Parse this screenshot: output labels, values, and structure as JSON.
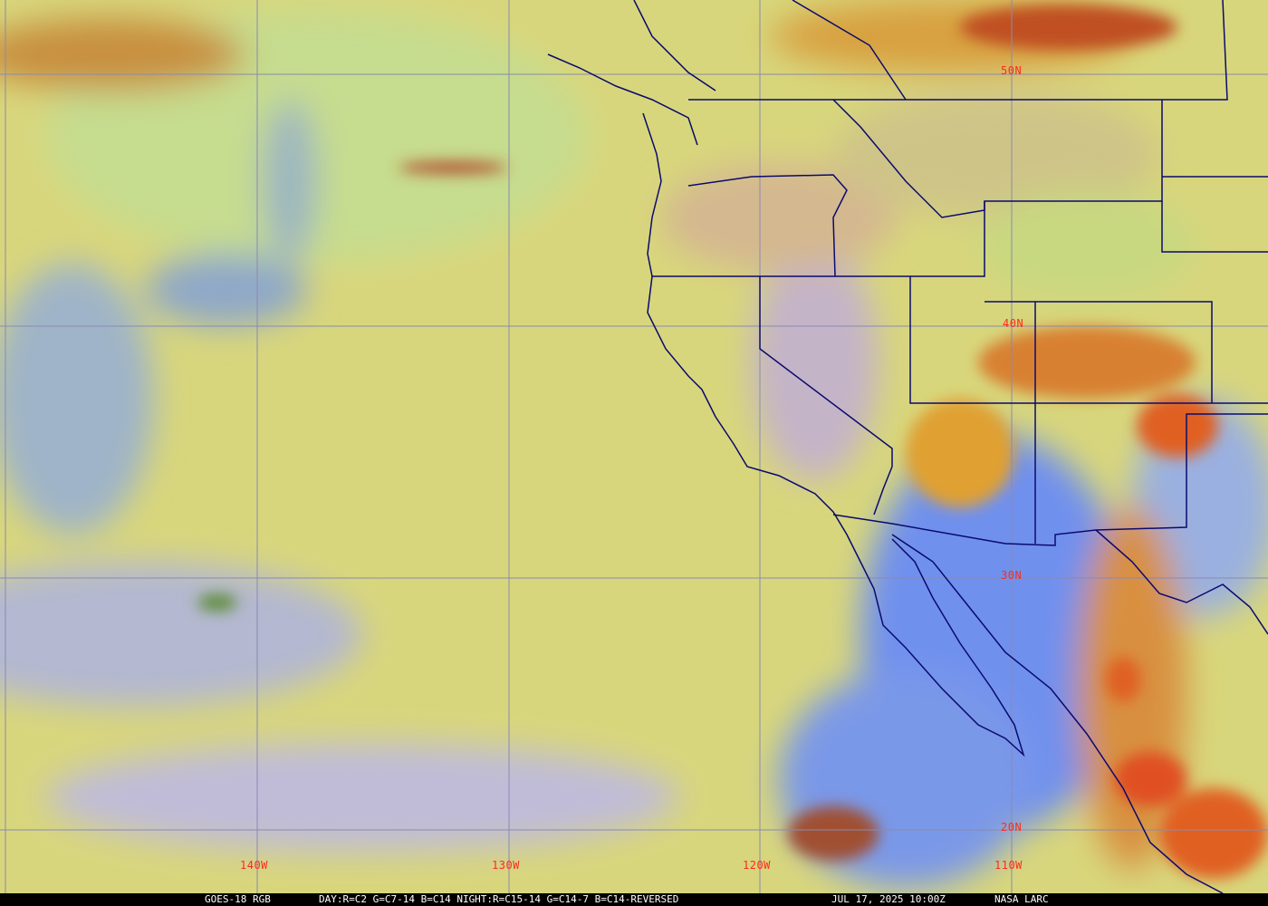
{
  "latitude_labels": [
    "50N",
    "40N",
    "30N",
    "20N"
  ],
  "longitude_labels": [
    "140W",
    "130W",
    "120W",
    "110W"
  ],
  "caption": {
    "product": "GOES-18 RGB",
    "recipe": "DAY:R=C2 G=C7-14 B=C14 NIGHT:R=C15-14 G=C14-7 B=C14-REVERSED",
    "timestamp": "JUL 17, 2025 10:00Z",
    "source": "NASA LARC"
  },
  "colors": {
    "label": "#ff2a1a",
    "borders": "#0a0a6e",
    "grid": "#8a8ab0",
    "ocean_clear": "#7f9cf0",
    "low_cloud": "#dcdc78",
    "high_cloud": "#e07020"
  }
}
